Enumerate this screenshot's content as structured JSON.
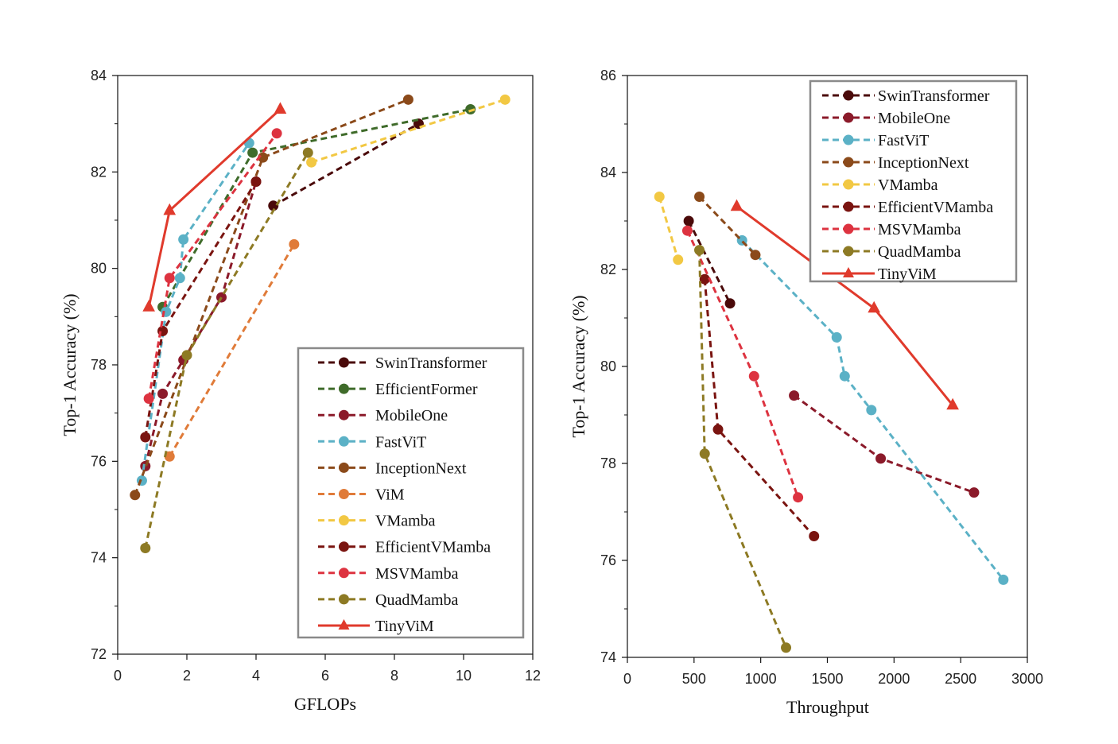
{
  "chart_data": [
    {
      "type": "line",
      "xlabel": "GFLOPs",
      "ylabel": "Top-1 Accuracy (%)",
      "xlim": [
        0,
        12
      ],
      "ylim": [
        72,
        84
      ],
      "xticks": [
        "0",
        "2",
        "4",
        "6",
        "8",
        "10",
        "12"
      ],
      "yticks": [
        "72",
        "74",
        "76",
        "78",
        "80",
        "82",
        "84"
      ],
      "legend_position": "bottom-right",
      "series": [
        {
          "name": "SwinTransformer",
          "color": "#4a0a0a",
          "style": "dashed",
          "marker": "circle",
          "x": [
            4.5,
            8.7
          ],
          "y": [
            81.3,
            83.0
          ]
        },
        {
          "name": "EfficientFormer",
          "color": "#3f6b2a",
          "style": "dashed",
          "marker": "circle",
          "x": [
            1.3,
            3.9,
            10.2
          ],
          "y": [
            79.2,
            82.4,
            83.3
          ]
        },
        {
          "name": "MobileOne",
          "color": "#8b1a2a",
          "style": "dashed",
          "marker": "circle",
          "x": [
            0.8,
            1.3,
            1.9,
            3.0,
            4.0
          ],
          "y": [
            75.9,
            77.4,
            78.1,
            79.4,
            81.8
          ]
        },
        {
          "name": "FastViT",
          "color": "#5bb1c6",
          "style": "dashed",
          "marker": "circle",
          "x": [
            0.7,
            1.4,
            1.8,
            1.9,
            3.8
          ],
          "y": [
            75.6,
            79.1,
            79.8,
            80.6,
            82.6
          ]
        },
        {
          "name": "InceptionNext",
          "color": "#8b4a1a",
          "style": "dashed",
          "marker": "circle",
          "x": [
            0.5,
            4.2,
            8.4
          ],
          "y": [
            75.3,
            82.3,
            83.5
          ]
        },
        {
          "name": "ViM",
          "color": "#e07b39",
          "style": "dashed",
          "marker": "circle",
          "x": [
            1.5,
            5.1
          ],
          "y": [
            76.1,
            80.5
          ]
        },
        {
          "name": "VMamba",
          "color": "#f2c843",
          "style": "dashed",
          "marker": "circle",
          "x": [
            5.6,
            11.2
          ],
          "y": [
            82.2,
            83.5
          ]
        },
        {
          "name": "EfficientVMamba",
          "color": "#7a1410",
          "style": "dashed",
          "marker": "circle",
          "x": [
            0.8,
            1.3,
            4.0
          ],
          "y": [
            76.5,
            78.7,
            81.8
          ]
        },
        {
          "name": "MSVMamba",
          "color": "#dd3340",
          "style": "dashed",
          "marker": "circle",
          "x": [
            0.9,
            1.5,
            4.6
          ],
          "y": [
            77.3,
            79.8,
            82.8
          ]
        },
        {
          "name": "QuadMamba",
          "color": "#8d7a24",
          "style": "dashed",
          "marker": "circle",
          "x": [
            0.8,
            2.0,
            5.5
          ],
          "y": [
            74.2,
            78.2,
            82.4
          ]
        },
        {
          "name": "TinyViM",
          "color": "#e03a2c",
          "style": "solid",
          "marker": "triangle",
          "x": [
            0.9,
            1.5,
            4.7
          ],
          "y": [
            79.2,
            81.2,
            83.3
          ]
        }
      ]
    },
    {
      "type": "line",
      "xlabel": "Throughput",
      "ylabel": "Top-1 Accuracy (%)",
      "xlim": [
        0,
        3000
      ],
      "ylim": [
        74,
        86
      ],
      "xticks": [
        "0",
        "500",
        "1000",
        "1500",
        "2000",
        "2500",
        "3000"
      ],
      "yticks": [
        "74",
        "76",
        "78",
        "80",
        "82",
        "84",
        "86"
      ],
      "legend_position": "top-right",
      "series": [
        {
          "name": "SwinTransformer",
          "color": "#4a0a0a",
          "style": "dashed",
          "marker": "circle",
          "x": [
            460,
            770
          ],
          "y": [
            83.0,
            81.3
          ]
        },
        {
          "name": "MobileOne",
          "color": "#8b1a2a",
          "style": "dashed",
          "marker": "circle",
          "x": [
            1250,
            1900,
            2600
          ],
          "y": [
            79.4,
            78.1,
            77.4
          ]
        },
        {
          "name": "FastViT",
          "color": "#5bb1c6",
          "style": "dashed",
          "marker": "circle",
          "x": [
            860,
            1570,
            1630,
            1830,
            2820
          ],
          "y": [
            82.6,
            80.6,
            79.8,
            79.1,
            75.6
          ]
        },
        {
          "name": "InceptionNext",
          "color": "#8b4a1a",
          "style": "dashed",
          "marker": "circle",
          "x": [
            540,
            960
          ],
          "y": [
            83.5,
            82.3
          ]
        },
        {
          "name": "VMamba",
          "color": "#f2c843",
          "style": "dashed",
          "marker": "circle",
          "x": [
            240,
            380
          ],
          "y": [
            83.5,
            82.2
          ]
        },
        {
          "name": "EfficientVMamba",
          "color": "#7a1410",
          "style": "dashed",
          "marker": "circle",
          "x": [
            580,
            680,
            1400
          ],
          "y": [
            81.8,
            78.7,
            76.5
          ]
        },
        {
          "name": "MSVMamba",
          "color": "#dd3340",
          "style": "dashed",
          "marker": "circle",
          "x": [
            450,
            950,
            1280
          ],
          "y": [
            82.8,
            79.8,
            77.3
          ]
        },
        {
          "name": "QuadMamba",
          "color": "#8d7a24",
          "style": "dashed",
          "marker": "circle",
          "x": [
            540,
            580,
            1190
          ],
          "y": [
            82.4,
            78.2,
            74.2
          ]
        },
        {
          "name": "TinyViM",
          "color": "#e03a2c",
          "style": "solid",
          "marker": "triangle",
          "x": [
            820,
            1850,
            2440
          ],
          "y": [
            83.3,
            81.2,
            79.2
          ]
        }
      ]
    }
  ]
}
